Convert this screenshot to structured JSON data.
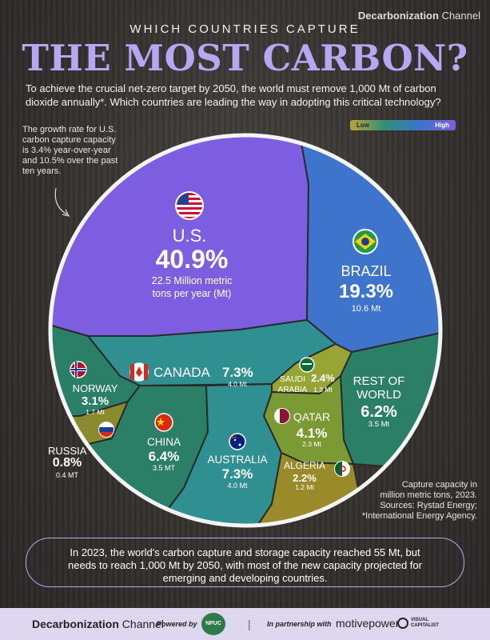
{
  "brand": {
    "bold": "Decarbonization",
    "light": "Channel"
  },
  "kicker": "WHICH COUNTRIES CAPTURE",
  "headline": "THE MOST CARBON?",
  "intro": "To achieve the crucial net-zero target by 2050, the world must remove 1,000 Mt of carbon dioxide annually*. Which countries are leading the way in adopting this critical technology?",
  "side_note": "The growth rate for U.S. carbon capture capacity is 3.4% year-over-year and 10.5% over the past ten years.",
  "legend": {
    "low": "Low",
    "high": "High"
  },
  "chart_data": {
    "type": "voronoi-treemap",
    "unit": "Mt",
    "segments": [
      {
        "name": "U.S.",
        "percent": "40.9%",
        "value": "22.5 Million metric",
        "value2": "tons per year (Mt)",
        "color": "#7e5ee0",
        "icon": "us-flag-icon"
      },
      {
        "name": "BRAZIL",
        "percent": "19.3%",
        "value": "10.6 Mt",
        "color": "#3e74cc",
        "icon": "brazil-flag-icon"
      },
      {
        "name": "CANADA",
        "percent": "7.3%",
        "value": "4.0 Mt",
        "color": "#2f8f91",
        "icon": "canada-flag-icon"
      },
      {
        "name": "NORWAY",
        "percent": "3.1%",
        "value": "1.7 Mt",
        "color": "#2b7f66",
        "icon": "norway-flag-icon"
      },
      {
        "name": "RUSSIA",
        "percent": "0.8%",
        "value": "0.4 MT",
        "color": "#8a8a2e",
        "icon": "russia-flag-icon"
      },
      {
        "name": "CHINA",
        "percent": "6.4%",
        "value": "3.5 MT",
        "color": "#2b7f66",
        "icon": "china-flag-icon"
      },
      {
        "name": "AUSTRALIA",
        "percent": "7.3%",
        "value": "4.0 Mt",
        "color": "#2f8f91",
        "icon": "australia-flag-icon"
      },
      {
        "name": "SAUDI",
        "name2": "ARABIA",
        "percent": "2.4%",
        "value": "1.3 Mt",
        "color": "#97a535",
        "icon": "saudi-flag-icon"
      },
      {
        "name": "REST OF",
        "name2": "WORLD",
        "percent": "6.2%",
        "value": "3.5 Mt",
        "color": "#2b7f66",
        "icon": ""
      },
      {
        "name": "QATAR",
        "percent": "4.1%",
        "value": "2.3 Mt",
        "color": "#7c9a34",
        "icon": "qatar-flag-icon"
      },
      {
        "name": "ALGERIA",
        "percent": "2.2%",
        "value": "1.2 Mt",
        "color": "#9a8a2a",
        "icon": "algeria-flag-icon"
      }
    ]
  },
  "source": {
    "line1": "Capture capacity in",
    "line2": "million metric tons, 2023.",
    "line3": "Sources: Rystad Energy;",
    "line4": "*International Energy Agency."
  },
  "footer_note": "In 2023, the world's carbon capture and storage capacity reached 55 Mt, but needs to reach 1,000 Mt by 2050, with most of the new capacity projected for emerging and developing countries.",
  "bottom": {
    "brand_bold": "Decarbonization",
    "brand_light": "Channel",
    "powered": "Powered by",
    "npuc": "NPUC",
    "sep": "|",
    "partnership": "In partnership with",
    "motive": "motivepower",
    "vc": "VISUAL CAPITALIST"
  }
}
